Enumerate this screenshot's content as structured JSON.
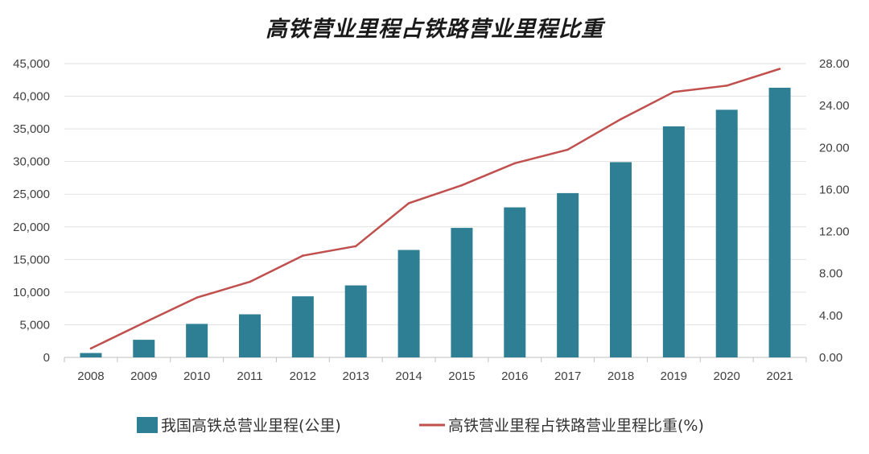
{
  "chart_data": {
    "type": "bar+line",
    "title": "高铁营业里程占铁路营业里程比重",
    "categories": [
      "2008",
      "2009",
      "2010",
      "2011",
      "2012",
      "2013",
      "2014",
      "2015",
      "2016",
      "2017",
      "2018",
      "2019",
      "2020",
      "2021"
    ],
    "series": [
      {
        "name": "我国高铁总营业里程(公里)",
        "type": "bar",
        "axis": "left",
        "color": "#2e7f94",
        "values": [
          672,
          2699,
          5133,
          6601,
          9356,
          11028,
          16456,
          19838,
          22980,
          25164,
          29904,
          35388,
          37929,
          41302
        ]
      },
      {
        "name": "高铁营业里程占铁路营业里程比重(%)",
        "type": "line",
        "axis": "right",
        "color": "#c0504d",
        "values": [
          0.85,
          3.3,
          5.7,
          7.2,
          9.7,
          10.6,
          14.7,
          16.4,
          18.5,
          19.8,
          22.7,
          25.3,
          25.9,
          27.5
        ]
      }
    ],
    "y_left": {
      "min": 0,
      "max": 45000,
      "ticks": [
        "0",
        "5,000",
        "10,000",
        "15,000",
        "20,000",
        "25,000",
        "30,000",
        "35,000",
        "40,000",
        "45,000"
      ]
    },
    "y_right": {
      "min": 0,
      "max": 28,
      "ticks": [
        "0.00",
        "4.00",
        "8.00",
        "12.00",
        "16.00",
        "20.00",
        "24.00",
        "28.00"
      ]
    },
    "grid": true,
    "legend_position": "bottom"
  }
}
